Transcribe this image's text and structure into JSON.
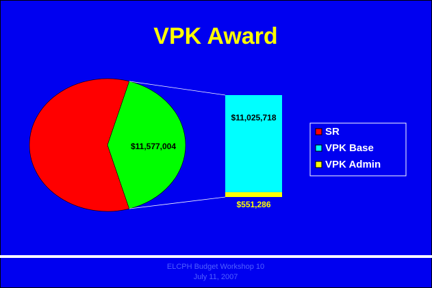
{
  "chart_data": {
    "type": "pie-of-bar",
    "title": "VPK Award",
    "series": [
      {
        "name": "SR",
        "color": "#ff0000",
        "values": [
          16650000
        ]
      },
      {
        "name": "VPK Base",
        "color": "#00ffff",
        "values": [
          11025718
        ],
        "value_labels": [
          "$11,025,718"
        ]
      },
      {
        "name": "VPK Admin",
        "color": "#ffff00",
        "values": [
          551286
        ],
        "value_labels": [
          "$551,286"
        ]
      }
    ],
    "other": {
      "value": 11577004,
      "label": "$11,577,004",
      "color": "#00ff00"
    },
    "footer": [
      "ELCPH Budget Workshop 10",
      "July 11, 2007"
    ]
  }
}
